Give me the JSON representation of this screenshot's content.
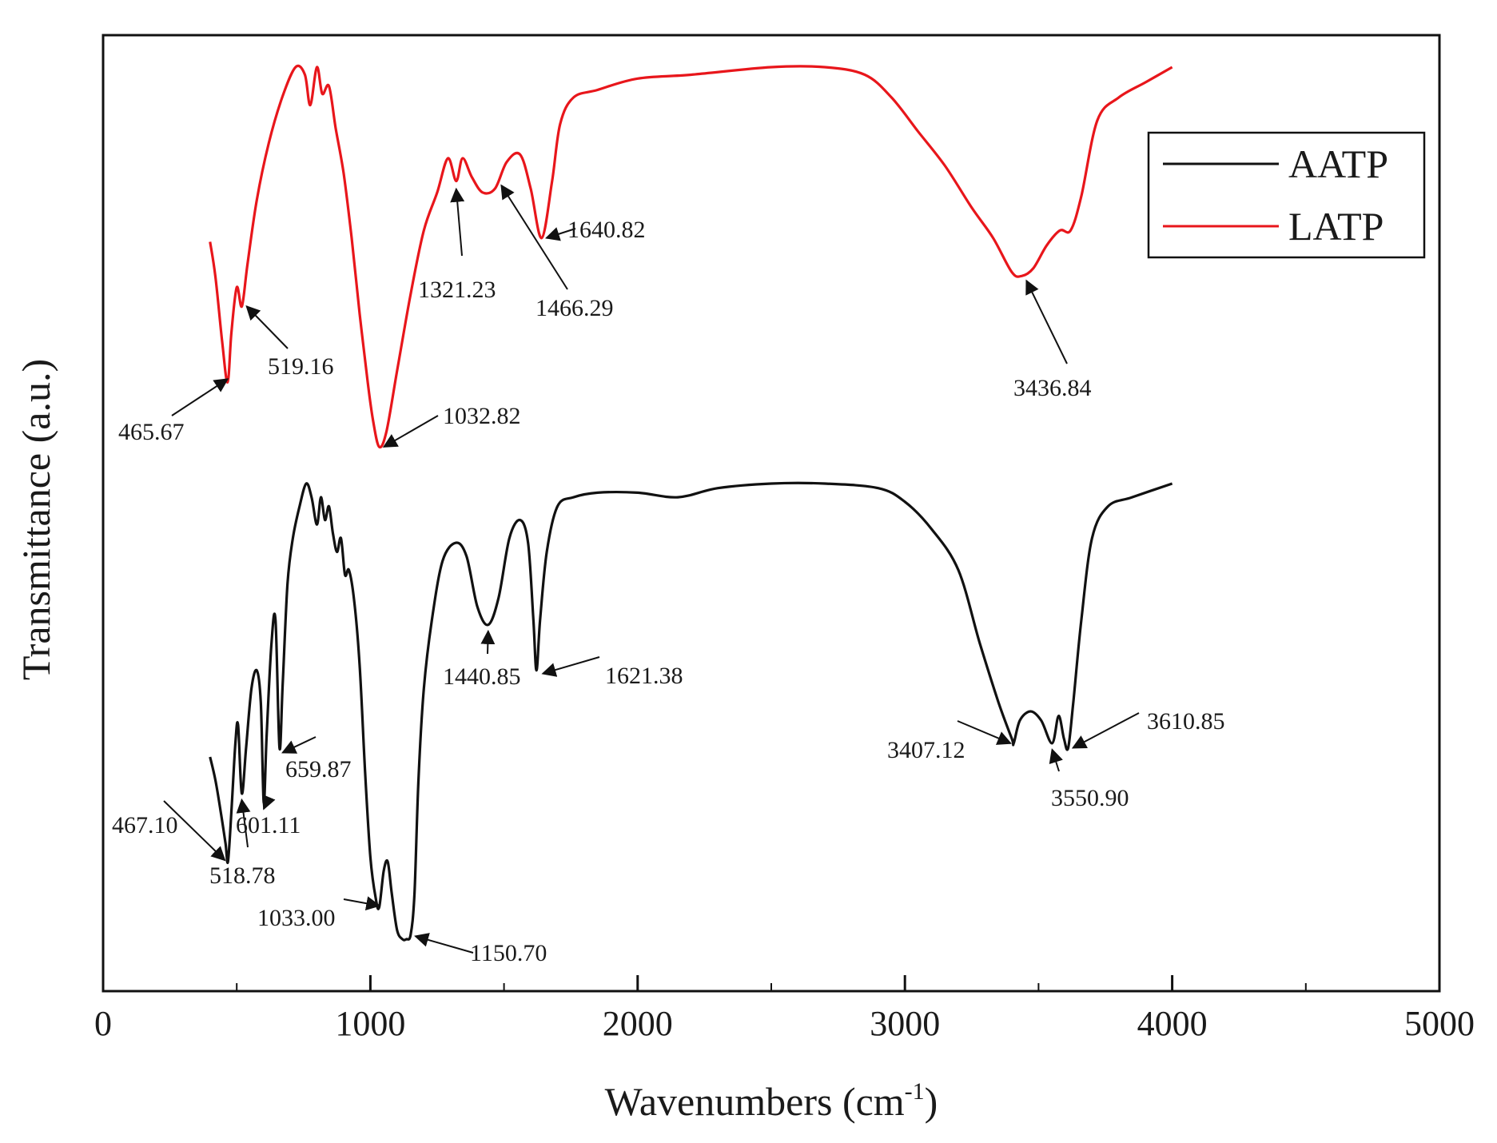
{
  "chart_data": {
    "type": "line",
    "xlabel": "Wavenumbers (cm",
    "xlabel_superscript": "-1",
    "xlabel_close": ")",
    "ylabel": "Transmittance (a.u.)",
    "xlim": [
      0,
      5000
    ],
    "xticks": [
      0,
      1000,
      2000,
      3000,
      4000,
      5000
    ],
    "grid": false,
    "legend_position": "top-right",
    "series": [
      {
        "name": "AATP",
        "color": "#111111",
        "offset": 0,
        "points": [
          [
            400,
            0.6
          ],
          [
            420,
            0.65
          ],
          [
            440,
            0.72
          ],
          [
            458,
            0.79
          ],
          [
            467.1,
            0.83
          ],
          [
            480,
            0.72
          ],
          [
            495,
            0.57
          ],
          [
            505,
            0.53
          ],
          [
            518.78,
            0.68
          ],
          [
            535,
            0.58
          ],
          [
            555,
            0.45
          ],
          [
            575,
            0.41
          ],
          [
            590,
            0.48
          ],
          [
            601.11,
            0.7
          ],
          [
            612,
            0.55
          ],
          [
            630,
            0.35
          ],
          [
            645,
            0.3
          ],
          [
            659.87,
            0.58
          ],
          [
            672,
            0.44
          ],
          [
            690,
            0.22
          ],
          [
            710,
            0.12
          ],
          [
            735,
            0.05
          ],
          [
            760,
            0.0
          ],
          [
            780,
            0.03
          ],
          [
            800,
            0.09
          ],
          [
            815,
            0.03
          ],
          [
            830,
            0.08
          ],
          [
            845,
            0.05
          ],
          [
            860,
            0.11
          ],
          [
            875,
            0.15
          ],
          [
            890,
            0.12
          ],
          [
            905,
            0.2
          ],
          [
            920,
            0.19
          ],
          [
            940,
            0.26
          ],
          [
            960,
            0.4
          ],
          [
            980,
            0.63
          ],
          [
            1000,
            0.82
          ],
          [
            1020,
            0.91
          ],
          [
            1033,
            0.93
          ],
          [
            1050,
            0.85
          ],
          [
            1065,
            0.83
          ],
          [
            1080,
            0.9
          ],
          [
            1100,
            0.98
          ],
          [
            1120,
            1.0
          ],
          [
            1135,
            1.0
          ],
          [
            1150.7,
            0.99
          ],
          [
            1165,
            0.9
          ],
          [
            1180,
            0.65
          ],
          [
            1200,
            0.45
          ],
          [
            1230,
            0.3
          ],
          [
            1270,
            0.17
          ],
          [
            1320,
            0.13
          ],
          [
            1360,
            0.16
          ],
          [
            1400,
            0.27
          ],
          [
            1440.85,
            0.31
          ],
          [
            1480,
            0.25
          ],
          [
            1520,
            0.12
          ],
          [
            1560,
            0.08
          ],
          [
            1590,
            0.13
          ],
          [
            1610,
            0.3
          ],
          [
            1621.38,
            0.41
          ],
          [
            1635,
            0.3
          ],
          [
            1660,
            0.15
          ],
          [
            1700,
            0.05
          ],
          [
            1760,
            0.03
          ],
          [
            1850,
            0.02
          ],
          [
            2000,
            0.02
          ],
          [
            2150,
            0.03
          ],
          [
            2300,
            0.01
          ],
          [
            2500,
            0.0
          ],
          [
            2700,
            0.0
          ],
          [
            2900,
            0.01
          ],
          [
            3000,
            0.04
          ],
          [
            3100,
            0.1
          ],
          [
            3200,
            0.19
          ],
          [
            3280,
            0.35
          ],
          [
            3350,
            0.48
          ],
          [
            3400,
            0.56
          ],
          [
            3407.12,
            0.57
          ],
          [
            3430,
            0.52
          ],
          [
            3470,
            0.5
          ],
          [
            3510,
            0.52
          ],
          [
            3550.9,
            0.57
          ],
          [
            3575,
            0.51
          ],
          [
            3595,
            0.56
          ],
          [
            3610.85,
            0.58
          ],
          [
            3630,
            0.48
          ],
          [
            3660,
            0.3
          ],
          [
            3700,
            0.12
          ],
          [
            3760,
            0.05
          ],
          [
            3850,
            0.03
          ],
          [
            4000,
            0.0
          ]
        ]
      },
      {
        "name": "LATP",
        "color": "#e8161b",
        "offset": 1,
        "points": [
          [
            400,
            0.46
          ],
          [
            420,
            0.55
          ],
          [
            445,
            0.72
          ],
          [
            465.67,
            0.83
          ],
          [
            480,
            0.7
          ],
          [
            500,
            0.58
          ],
          [
            519.16,
            0.63
          ],
          [
            540,
            0.52
          ],
          [
            575,
            0.35
          ],
          [
            620,
            0.2
          ],
          [
            670,
            0.08
          ],
          [
            720,
            0.0
          ],
          [
            755,
            0.02
          ],
          [
            775,
            0.1
          ],
          [
            800,
            0.0
          ],
          [
            820,
            0.07
          ],
          [
            845,
            0.05
          ],
          [
            870,
            0.16
          ],
          [
            900,
            0.28
          ],
          [
            930,
            0.45
          ],
          [
            960,
            0.65
          ],
          [
            990,
            0.83
          ],
          [
            1010,
            0.93
          ],
          [
            1032.82,
            1.0
          ],
          [
            1060,
            0.96
          ],
          [
            1100,
            0.8
          ],
          [
            1150,
            0.6
          ],
          [
            1200,
            0.43
          ],
          [
            1250,
            0.33
          ],
          [
            1290,
            0.24
          ],
          [
            1321.23,
            0.3
          ],
          [
            1345,
            0.24
          ],
          [
            1380,
            0.29
          ],
          [
            1420,
            0.33
          ],
          [
            1466.29,
            0.32
          ],
          [
            1510,
            0.25
          ],
          [
            1560,
            0.23
          ],
          [
            1600,
            0.32
          ],
          [
            1640.82,
            0.45
          ],
          [
            1680,
            0.3
          ],
          [
            1710,
            0.15
          ],
          [
            1760,
            0.08
          ],
          [
            1850,
            0.06
          ],
          [
            2000,
            0.03
          ],
          [
            2200,
            0.02
          ],
          [
            2500,
            0.0
          ],
          [
            2700,
            0.0
          ],
          [
            2850,
            0.02
          ],
          [
            2950,
            0.08
          ],
          [
            3050,
            0.17
          ],
          [
            3150,
            0.26
          ],
          [
            3250,
            0.37
          ],
          [
            3330,
            0.45
          ],
          [
            3400,
            0.54
          ],
          [
            3436.84,
            0.55
          ],
          [
            3480,
            0.53
          ],
          [
            3530,
            0.47
          ],
          [
            3580,
            0.43
          ],
          [
            3620,
            0.43
          ],
          [
            3660,
            0.34
          ],
          [
            3720,
            0.14
          ],
          [
            3800,
            0.08
          ],
          [
            3900,
            0.04
          ],
          [
            4000,
            0.0
          ]
        ]
      }
    ],
    "annotations": [
      {
        "series": "LATP",
        "text": "465.67",
        "x": 465.67
      },
      {
        "series": "LATP",
        "text": "519.16",
        "x": 519.16
      },
      {
        "series": "LATP",
        "text": "1032.82",
        "x": 1032.82
      },
      {
        "series": "LATP",
        "text": "1321.23",
        "x": 1321.23
      },
      {
        "series": "LATP",
        "text": "1466.29",
        "x": 1466.29
      },
      {
        "series": "LATP",
        "text": "1640.82",
        "x": 1640.82
      },
      {
        "series": "LATP",
        "text": "3436.84",
        "x": 3436.84
      },
      {
        "series": "AATP",
        "text": "467.10",
        "x": 467.1
      },
      {
        "series": "AATP",
        "text": "518.78",
        "x": 518.78
      },
      {
        "series": "AATP",
        "text": "601.11",
        "x": 601.11
      },
      {
        "series": "AATP",
        "text": "659.87",
        "x": 659.87
      },
      {
        "series": "AATP",
        "text": "1033.00",
        "x": 1033.0
      },
      {
        "series": "AATP",
        "text": "1150.70",
        "x": 1150.7
      },
      {
        "series": "AATP",
        "text": "1440.85",
        "x": 1440.85
      },
      {
        "series": "AATP",
        "text": "1621.38",
        "x": 1621.38
      },
      {
        "series": "AATP",
        "text": "3407.12",
        "x": 3407.12
      },
      {
        "series": "AATP",
        "text": "3550.90",
        "x": 3550.9
      },
      {
        "series": "AATP",
        "text": "3610.85",
        "x": 3610.85
      }
    ]
  }
}
